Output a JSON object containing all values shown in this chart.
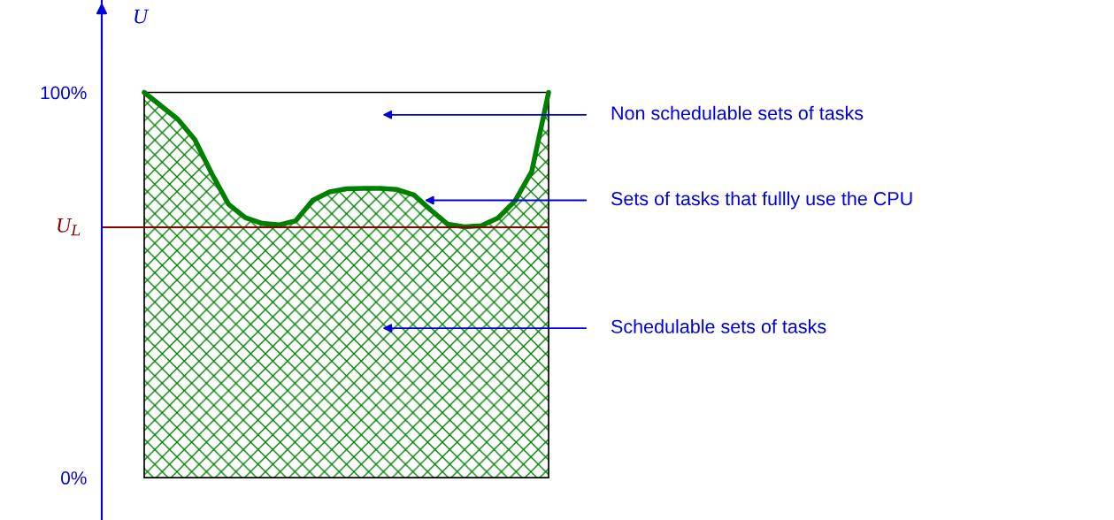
{
  "chart_data": {
    "type": "area",
    "ylabel": "U",
    "categories": [
      null,
      null,
      null,
      null,
      null,
      null,
      null,
      null,
      null,
      null,
      null,
      null,
      null,
      null,
      null,
      null,
      null,
      null,
      null,
      null,
      null,
      null,
      null,
      null,
      null
    ],
    "series": [
      {
        "color": "#008000",
        "values": [
          100,
          96.5,
          93,
          87.8,
          79,
          71,
          67.5,
          66,
          65.6,
          66.7,
          72,
          74.2,
          75,
          75.1,
          75.1,
          74.8,
          73.4,
          69.5,
          65.8,
          65.1,
          65.4,
          67.4,
          71.8,
          79.5,
          100
        ]
      }
    ],
    "ylim": [
      -11,
      124
    ],
    "yticks": [
      {
        "value": 0,
        "label": "0%"
      },
      {
        "value": 100,
        "label": "100%"
      }
    ],
    "tick_labels": "y",
    "ref_lines": [
      {
        "axis": "y",
        "value": 65,
        "label": "U$_{L}$",
        "color": "#8b0000"
      }
    ],
    "annotations": [
      "Non schedulable sets of tasks",
      "Sets of tasks that fullly use the CPU",
      "Schedulable sets of tasks"
    ]
  }
}
